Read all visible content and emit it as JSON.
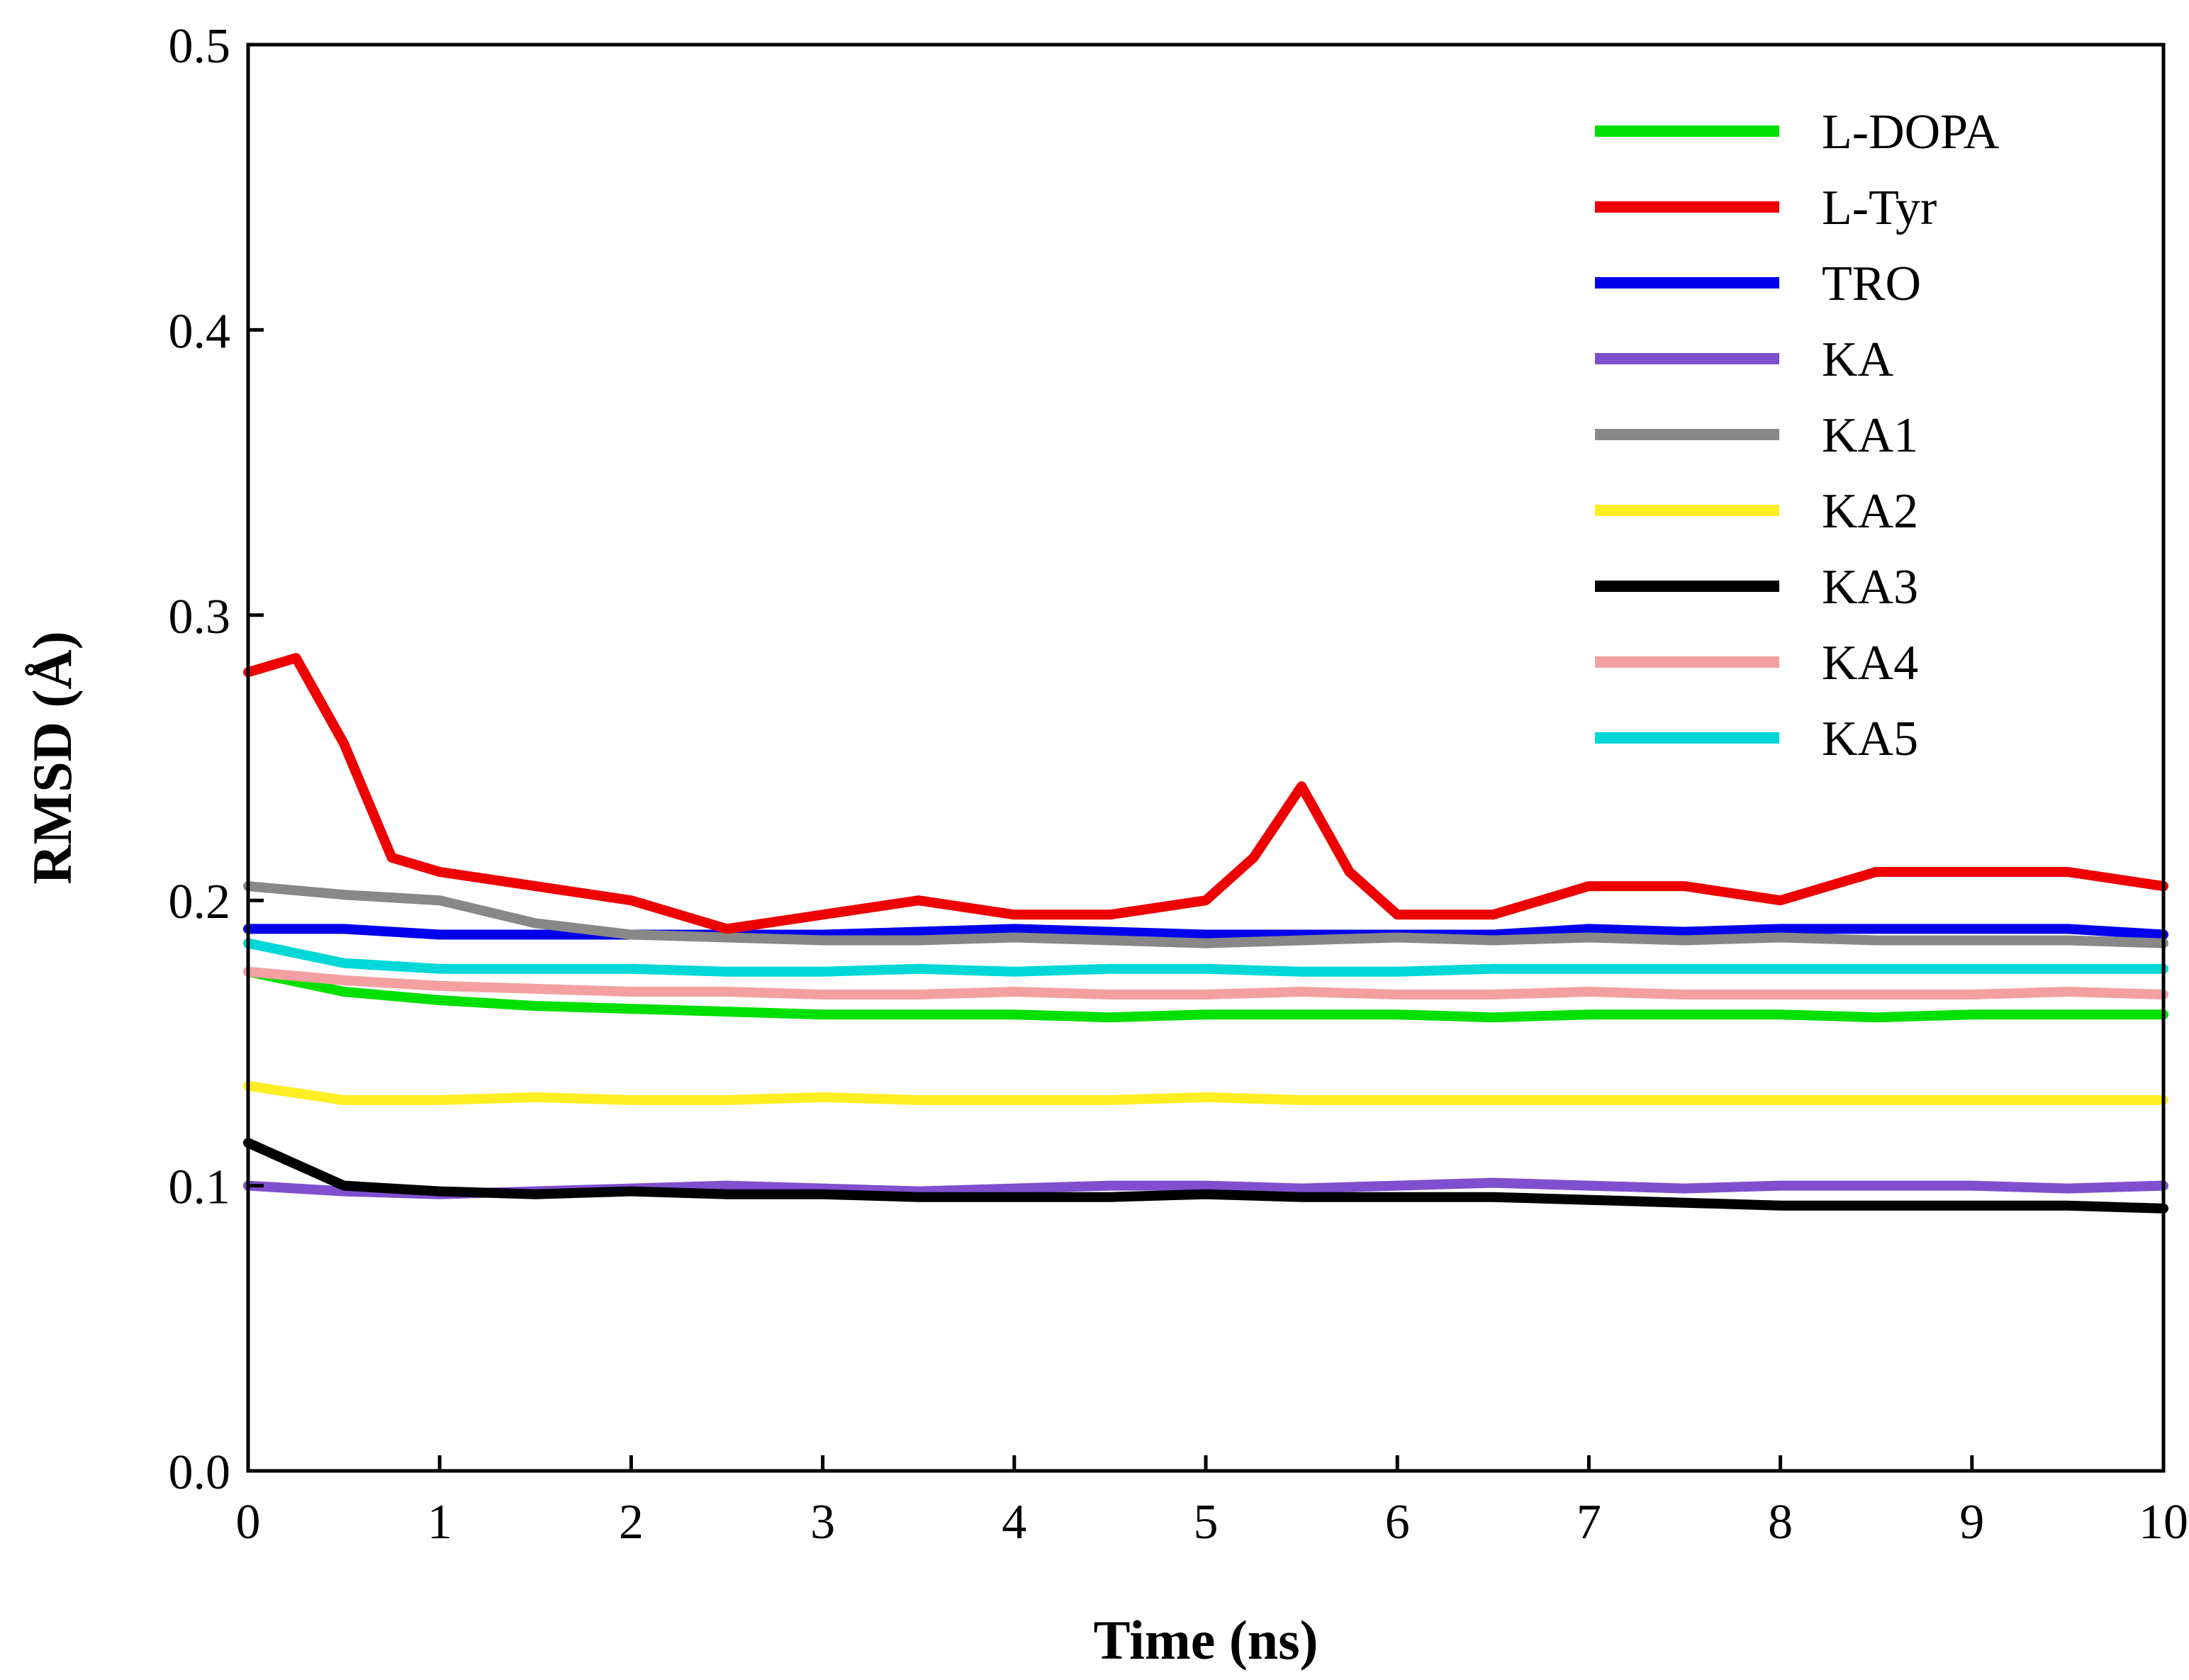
{
  "chart_data": {
    "type": "line",
    "title": "",
    "xlabel": "Time (ns)",
    "ylabel": "RMSD (Å)",
    "xlim": [
      0,
      10
    ],
    "ylim": [
      0,
      0.5
    ],
    "x_ticks": [
      0,
      1,
      2,
      3,
      4,
      5,
      6,
      7,
      8,
      9,
      10
    ],
    "x_tick_labels": [
      "0",
      "1",
      "2",
      "3",
      "4",
      "5",
      "6",
      "7",
      "8",
      "9",
      "10"
    ],
    "y_ticks": [
      0,
      0.1,
      0.2,
      0.3,
      0.4,
      0.5
    ],
    "y_tick_labels": [
      "0.0",
      "0.1",
      "0.2",
      "0.3",
      "0.4",
      "0.5"
    ],
    "grid": false,
    "legend_position": "top-right",
    "series": [
      {
        "name": "L-DOPA",
        "color": "#00e000",
        "x": [
          0,
          0.5,
          1,
          1.5,
          2,
          2.5,
          3,
          3.5,
          4,
          4.5,
          5,
          5.5,
          6,
          6.5,
          7,
          7.5,
          8,
          8.5,
          9,
          9.5,
          10
        ],
        "y": [
          0.175,
          0.168,
          0.165,
          0.163,
          0.162,
          0.161,
          0.16,
          0.16,
          0.16,
          0.159,
          0.16,
          0.16,
          0.16,
          0.159,
          0.16,
          0.16,
          0.16,
          0.159,
          0.16,
          0.16,
          0.16
        ]
      },
      {
        "name": "L-Tyr",
        "color": "#ee0000",
        "x": [
          0,
          0.25,
          0.5,
          0.75,
          1,
          1.5,
          2,
          2.5,
          3,
          3.5,
          4,
          4.5,
          5,
          5.25,
          5.5,
          5.75,
          6,
          6.5,
          7,
          7.5,
          8,
          8.5,
          9,
          9.5,
          10
        ],
        "y": [
          0.28,
          0.285,
          0.255,
          0.215,
          0.21,
          0.205,
          0.2,
          0.19,
          0.195,
          0.2,
          0.195,
          0.195,
          0.2,
          0.215,
          0.24,
          0.21,
          0.195,
          0.195,
          0.205,
          0.205,
          0.2,
          0.21,
          0.21,
          0.21,
          0.205
        ]
      },
      {
        "name": "TRO",
        "color": "#0000ee",
        "x": [
          0,
          0.5,
          1,
          1.5,
          2,
          2.5,
          3,
          3.5,
          4,
          4.5,
          5,
          5.5,
          6,
          6.5,
          7,
          7.5,
          8,
          8.5,
          9,
          9.5,
          10
        ],
        "y": [
          0.19,
          0.19,
          0.188,
          0.188,
          0.188,
          0.188,
          0.188,
          0.189,
          0.19,
          0.189,
          0.188,
          0.188,
          0.188,
          0.188,
          0.19,
          0.189,
          0.19,
          0.19,
          0.19,
          0.19,
          0.188
        ]
      },
      {
        "name": "KA",
        "color": "#7f4fcf",
        "x": [
          0,
          0.5,
          1,
          1.5,
          2,
          2.5,
          3,
          3.5,
          4,
          4.5,
          5,
          5.5,
          6,
          6.5,
          7,
          7.5,
          8,
          8.5,
          9,
          9.5,
          10
        ],
        "y": [
          0.1,
          0.098,
          0.097,
          0.098,
          0.099,
          0.1,
          0.099,
          0.098,
          0.099,
          0.1,
          0.1,
          0.099,
          0.1,
          0.101,
          0.1,
          0.099,
          0.1,
          0.1,
          0.1,
          0.099,
          0.1
        ]
      },
      {
        "name": "KA1",
        "color": "#888888",
        "x": [
          0,
          0.5,
          1,
          1.5,
          2,
          2.5,
          3,
          3.5,
          4,
          4.5,
          5,
          5.5,
          6,
          6.5,
          7,
          7.5,
          8,
          8.5,
          9,
          9.5,
          10
        ],
        "y": [
          0.205,
          0.202,
          0.2,
          0.192,
          0.188,
          0.187,
          0.186,
          0.186,
          0.187,
          0.186,
          0.185,
          0.186,
          0.187,
          0.186,
          0.187,
          0.186,
          0.187,
          0.186,
          0.186,
          0.186,
          0.185
        ]
      },
      {
        "name": "KA2",
        "color": "#ffee22",
        "x": [
          0,
          0.5,
          1,
          1.5,
          2,
          2.5,
          3,
          3.5,
          4,
          4.5,
          5,
          5.5,
          6,
          6.5,
          7,
          7.5,
          8,
          8.5,
          9,
          9.5,
          10
        ],
        "y": [
          0.135,
          0.13,
          0.13,
          0.131,
          0.13,
          0.13,
          0.131,
          0.13,
          0.13,
          0.13,
          0.131,
          0.13,
          0.13,
          0.13,
          0.13,
          0.13,
          0.13,
          0.13,
          0.13,
          0.13,
          0.13
        ]
      },
      {
        "name": "KA3",
        "color": "#000000",
        "x": [
          0,
          0.5,
          1,
          1.5,
          2,
          2.5,
          3,
          3.5,
          4,
          4.5,
          5,
          5.5,
          6,
          6.5,
          7,
          7.5,
          8,
          8.5,
          9,
          9.5,
          10
        ],
        "y": [
          0.115,
          0.1,
          0.098,
          0.097,
          0.098,
          0.097,
          0.097,
          0.096,
          0.096,
          0.096,
          0.097,
          0.096,
          0.096,
          0.096,
          0.095,
          0.094,
          0.093,
          0.093,
          0.093,
          0.093,
          0.092
        ]
      },
      {
        "name": "KA4",
        "color": "#f4a0a0",
        "x": [
          0,
          0.5,
          1,
          1.5,
          2,
          2.5,
          3,
          3.5,
          4,
          4.5,
          5,
          5.5,
          6,
          6.5,
          7,
          7.5,
          8,
          8.5,
          9,
          9.5,
          10
        ],
        "y": [
          0.175,
          0.172,
          0.17,
          0.169,
          0.168,
          0.168,
          0.167,
          0.167,
          0.168,
          0.167,
          0.167,
          0.168,
          0.167,
          0.167,
          0.168,
          0.167,
          0.167,
          0.167,
          0.167,
          0.168,
          0.167
        ]
      },
      {
        "name": "KA5",
        "color": "#00d8d8",
        "x": [
          0,
          0.5,
          1,
          1.5,
          2,
          2.5,
          3,
          3.5,
          4,
          4.5,
          5,
          5.5,
          6,
          6.5,
          7,
          7.5,
          8,
          8.5,
          9,
          9.5,
          10
        ],
        "y": [
          0.185,
          0.178,
          0.176,
          0.176,
          0.176,
          0.175,
          0.175,
          0.176,
          0.175,
          0.176,
          0.176,
          0.175,
          0.175,
          0.176,
          0.176,
          0.176,
          0.176,
          0.176,
          0.176,
          0.176,
          0.176
        ]
      }
    ],
    "legend": [
      {
        "label": "L-DOPA",
        "color": "#00e000"
      },
      {
        "label": "L-Tyr",
        "color": "#ee0000"
      },
      {
        "label": "TRO",
        "color": "#0000ee"
      },
      {
        "label": "KA",
        "color": "#7f4fcf"
      },
      {
        "label": "KA1",
        "color": "#888888"
      },
      {
        "label": "KA2",
        "color": "#ffee22"
      },
      {
        "label": "KA3",
        "color": "#000000"
      },
      {
        "label": "KA4",
        "color": "#f4a0a0"
      },
      {
        "label": "KA5",
        "color": "#00d8d8"
      }
    ]
  }
}
